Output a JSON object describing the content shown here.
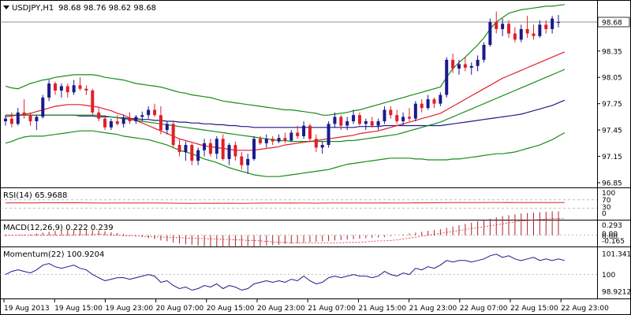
{
  "main": {
    "symbol_label": "USDJPY,H1",
    "ohlc_label": "98.68 98.76 98.62 98.68",
    "price_ticks": [
      "98.68",
      "98.35",
      "98.05",
      "97.75",
      "97.45",
      "97.15",
      "96.85"
    ],
    "current_price": "98.68"
  },
  "rsi": {
    "label": "RSI(14) 65.9688",
    "levels": [
      "100",
      "70",
      "30",
      "0"
    ]
  },
  "macd": {
    "label": "MACD(12,26,9) 0.222 0.239",
    "levels": [
      "0.293",
      "0.00",
      "0.00",
      "-0.165"
    ]
  },
  "momentum": {
    "label": "Momentum(22) 100.9204",
    "levels": [
      "101.3413",
      "100",
      "98.9212"
    ]
  },
  "time_labels": [
    "19 Aug 2013",
    "19 Aug 15:00",
    "19 Aug 23:00",
    "20 Aug 07:00",
    "20 Aug 15:00",
    "20 Aug 23:00",
    "21 Aug 07:00",
    "21 Aug 15:00",
    "21 Aug 23:00",
    "22 Aug 07:00",
    "22 Aug 15:00",
    "22 Aug 23:00"
  ],
  "colors": {
    "bull": "#1a1a8c",
    "bear": "#e0202a",
    "bollinger": "#1a8c1a",
    "ma_fast": "#e0202a",
    "ma_mid": "#1a8c1a",
    "ma_slow": "#1a1a8c",
    "macd_hist": "#b0202a",
    "oscillator": "#e0202a",
    "momentum": "#1a1a8c"
  },
  "chart_data": {
    "type": "candlestick",
    "title": "USDJPY,H1",
    "ylim": [
      96.8,
      98.8
    ],
    "candles": [
      {
        "o": 97.55,
        "h": 97.62,
        "l": 97.5,
        "c": 97.58
      },
      {
        "o": 97.58,
        "h": 97.65,
        "l": 97.48,
        "c": 97.52
      },
      {
        "o": 97.52,
        "h": 97.7,
        "l": 97.5,
        "c": 97.65
      },
      {
        "o": 97.65,
        "h": 97.8,
        "l": 97.58,
        "c": 97.62
      },
      {
        "o": 97.62,
        "h": 97.65,
        "l": 97.5,
        "c": 97.55
      },
      {
        "o": 97.55,
        "h": 97.62,
        "l": 97.45,
        "c": 97.6
      },
      {
        "o": 97.6,
        "h": 97.85,
        "l": 97.58,
        "c": 97.82
      },
      {
        "o": 97.82,
        "h": 98.02,
        "l": 97.78,
        "c": 97.98
      },
      {
        "o": 97.98,
        "h": 98.0,
        "l": 97.85,
        "c": 97.9
      },
      {
        "o": 97.9,
        "h": 97.98,
        "l": 97.82,
        "c": 97.95
      },
      {
        "o": 97.95,
        "h": 97.98,
        "l": 97.82,
        "c": 97.88
      },
      {
        "o": 97.88,
        "h": 98.02,
        "l": 97.85,
        "c": 97.96
      },
      {
        "o": 97.96,
        "h": 98.05,
        "l": 97.9,
        "c": 97.92
      },
      {
        "o": 97.92,
        "h": 97.96,
        "l": 97.85,
        "c": 97.9
      },
      {
        "o": 97.9,
        "h": 97.92,
        "l": 97.62,
        "c": 97.65
      },
      {
        "o": 97.65,
        "h": 97.7,
        "l": 97.55,
        "c": 97.58
      },
      {
        "o": 97.58,
        "h": 97.62,
        "l": 97.45,
        "c": 97.48
      },
      {
        "o": 97.48,
        "h": 97.58,
        "l": 97.45,
        "c": 97.55
      },
      {
        "o": 97.55,
        "h": 97.62,
        "l": 97.5,
        "c": 97.52
      },
      {
        "o": 97.52,
        "h": 97.62,
        "l": 97.48,
        "c": 97.58
      },
      {
        "o": 97.58,
        "h": 97.65,
        "l": 97.52,
        "c": 97.55
      },
      {
        "o": 97.55,
        "h": 97.62,
        "l": 97.52,
        "c": 97.6
      },
      {
        "o": 97.6,
        "h": 97.66,
        "l": 97.55,
        "c": 97.62
      },
      {
        "o": 97.62,
        "h": 97.72,
        "l": 97.58,
        "c": 97.68
      },
      {
        "o": 97.68,
        "h": 97.75,
        "l": 97.6,
        "c": 97.62
      },
      {
        "o": 97.62,
        "h": 97.72,
        "l": 97.4,
        "c": 97.45
      },
      {
        "o": 97.45,
        "h": 97.55,
        "l": 97.4,
        "c": 97.52
      },
      {
        "o": 97.52,
        "h": 97.55,
        "l": 97.25,
        "c": 97.28
      },
      {
        "o": 97.28,
        "h": 97.35,
        "l": 97.15,
        "c": 97.2
      },
      {
        "o": 97.2,
        "h": 97.32,
        "l": 97.1,
        "c": 97.28
      },
      {
        "o": 97.28,
        "h": 97.3,
        "l": 97.05,
        "c": 97.1
      },
      {
        "o": 97.1,
        "h": 97.25,
        "l": 97.05,
        "c": 97.22
      },
      {
        "o": 97.22,
        "h": 97.35,
        "l": 97.15,
        "c": 97.3
      },
      {
        "o": 97.3,
        "h": 97.35,
        "l": 97.15,
        "c": 97.18
      },
      {
        "o": 97.18,
        "h": 97.38,
        "l": 97.12,
        "c": 97.35
      },
      {
        "o": 97.35,
        "h": 97.4,
        "l": 97.1,
        "c": 97.12
      },
      {
        "o": 97.12,
        "h": 97.3,
        "l": 97.05,
        "c": 97.28
      },
      {
        "o": 97.28,
        "h": 97.32,
        "l": 97.1,
        "c": 97.15
      },
      {
        "o": 97.15,
        "h": 97.2,
        "l": 97.0,
        "c": 97.05
      },
      {
        "o": 97.05,
        "h": 97.18,
        "l": 96.95,
        "c": 97.12
      },
      {
        "o": 97.12,
        "h": 97.38,
        "l": 97.1,
        "c": 97.35
      },
      {
        "o": 97.35,
        "h": 97.38,
        "l": 97.28,
        "c": 97.3
      },
      {
        "o": 97.3,
        "h": 97.4,
        "l": 97.25,
        "c": 97.35
      },
      {
        "o": 97.35,
        "h": 97.38,
        "l": 97.28,
        "c": 97.32
      },
      {
        "o": 97.32,
        "h": 97.4,
        "l": 97.3,
        "c": 97.36
      },
      {
        "o": 97.36,
        "h": 97.42,
        "l": 97.3,
        "c": 97.33
      },
      {
        "o": 97.33,
        "h": 97.45,
        "l": 97.32,
        "c": 97.42
      },
      {
        "o": 97.42,
        "h": 97.5,
        "l": 97.35,
        "c": 97.38
      },
      {
        "o": 97.38,
        "h": 97.55,
        "l": 97.35,
        "c": 97.5
      },
      {
        "o": 97.5,
        "h": 97.52,
        "l": 97.32,
        "c": 97.35
      },
      {
        "o": 97.35,
        "h": 97.4,
        "l": 97.2,
        "c": 97.25
      },
      {
        "o": 97.25,
        "h": 97.32,
        "l": 97.18,
        "c": 97.28
      },
      {
        "o": 97.28,
        "h": 97.55,
        "l": 97.25,
        "c": 97.52
      },
      {
        "o": 97.52,
        "h": 97.65,
        "l": 97.48,
        "c": 97.6
      },
      {
        "o": 97.6,
        "h": 97.62,
        "l": 97.45,
        "c": 97.5
      },
      {
        "o": 97.5,
        "h": 97.6,
        "l": 97.45,
        "c": 97.55
      },
      {
        "o": 97.55,
        "h": 97.68,
        "l": 97.52,
        "c": 97.62
      },
      {
        "o": 97.62,
        "h": 97.65,
        "l": 97.5,
        "c": 97.52
      },
      {
        "o": 97.52,
        "h": 97.58,
        "l": 97.45,
        "c": 97.55
      },
      {
        "o": 97.55,
        "h": 97.6,
        "l": 97.48,
        "c": 97.5
      },
      {
        "o": 97.5,
        "h": 97.58,
        "l": 97.45,
        "c": 97.55
      },
      {
        "o": 97.55,
        "h": 97.72,
        "l": 97.52,
        "c": 97.68
      },
      {
        "o": 97.68,
        "h": 97.72,
        "l": 97.58,
        "c": 97.62
      },
      {
        "o": 97.62,
        "h": 97.68,
        "l": 97.52,
        "c": 97.55
      },
      {
        "o": 97.55,
        "h": 97.65,
        "l": 97.5,
        "c": 97.6
      },
      {
        "o": 97.6,
        "h": 97.7,
        "l": 97.55,
        "c": 97.58
      },
      {
        "o": 97.58,
        "h": 97.78,
        "l": 97.55,
        "c": 97.75
      },
      {
        "o": 97.75,
        "h": 97.8,
        "l": 97.65,
        "c": 97.7
      },
      {
        "o": 97.7,
        "h": 97.85,
        "l": 97.68,
        "c": 97.8
      },
      {
        "o": 97.8,
        "h": 97.82,
        "l": 97.7,
        "c": 97.75
      },
      {
        "o": 97.75,
        "h": 97.88,
        "l": 97.72,
        "c": 97.85
      },
      {
        "o": 97.85,
        "h": 98.28,
        "l": 97.82,
        "c": 98.25
      },
      {
        "o": 98.25,
        "h": 98.32,
        "l": 98.1,
        "c": 98.15
      },
      {
        "o": 98.15,
        "h": 98.25,
        "l": 98.08,
        "c": 98.2
      },
      {
        "o": 98.2,
        "h": 98.28,
        "l": 98.12,
        "c": 98.16
      },
      {
        "o": 98.16,
        "h": 98.22,
        "l": 98.08,
        "c": 98.18
      },
      {
        "o": 98.18,
        "h": 98.3,
        "l": 98.12,
        "c": 98.25
      },
      {
        "o": 98.25,
        "h": 98.45,
        "l": 98.22,
        "c": 98.42
      },
      {
        "o": 98.42,
        "h": 98.72,
        "l": 98.4,
        "c": 98.68
      },
      {
        "o": 98.68,
        "h": 98.8,
        "l": 98.55,
        "c": 98.6
      },
      {
        "o": 98.6,
        "h": 98.72,
        "l": 98.52,
        "c": 98.66
      },
      {
        "o": 98.66,
        "h": 98.7,
        "l": 98.5,
        "c": 98.55
      },
      {
        "o": 98.55,
        "h": 98.62,
        "l": 98.45,
        "c": 98.48
      },
      {
        "o": 98.48,
        "h": 98.65,
        "l": 98.45,
        "c": 98.6
      },
      {
        "o": 98.6,
        "h": 98.75,
        "l": 98.5,
        "c": 98.55
      },
      {
        "o": 98.55,
        "h": 98.65,
        "l": 98.48,
        "c": 98.52
      },
      {
        "o": 98.52,
        "h": 98.7,
        "l": 98.5,
        "c": 98.65
      },
      {
        "o": 98.65,
        "h": 98.7,
        "l": 98.55,
        "c": 98.6
      },
      {
        "o": 98.6,
        "h": 98.75,
        "l": 98.55,
        "c": 98.72
      },
      {
        "o": 98.68,
        "h": 98.76,
        "l": 98.62,
        "c": 98.68
      }
    ],
    "overlays": {
      "bb_upper": [
        97.95,
        97.93,
        97.92,
        97.95,
        97.98,
        98.0,
        98.02,
        98.03,
        98.05,
        98.06,
        98.07,
        98.08,
        98.08,
        98.08,
        98.08,
        98.07,
        98.05,
        98.04,
        98.03,
        98.02,
        98.0,
        97.98,
        97.97,
        97.96,
        97.95,
        97.94,
        97.92,
        97.9,
        97.88,
        97.87,
        97.85,
        97.84,
        97.83,
        97.82,
        97.8,
        97.78,
        97.77,
        97.76,
        97.75,
        97.74,
        97.73,
        97.72,
        97.71,
        97.7,
        97.69,
        97.68,
        97.68,
        97.67,
        97.66,
        97.65,
        97.64,
        97.62,
        97.62,
        97.63,
        97.64,
        97.65,
        97.67,
        97.68,
        97.7,
        97.72,
        97.74,
        97.76,
        97.78,
        97.8,
        97.82,
        97.84,
        97.86,
        97.88,
        97.9,
        97.92,
        97.94,
        98.05,
        98.15,
        98.22,
        98.28,
        98.35,
        98.42,
        98.5,
        98.6,
        98.68,
        98.73,
        98.78,
        98.8,
        98.82,
        98.83,
        98.84,
        98.85,
        98.86,
        98.86,
        98.87,
        98.88
      ],
      "bb_lower": [
        97.3,
        97.32,
        97.35,
        97.37,
        97.38,
        97.38,
        97.38,
        97.39,
        97.4,
        97.41,
        97.42,
        97.43,
        97.44,
        97.44,
        97.44,
        97.43,
        97.42,
        97.41,
        97.4,
        97.38,
        97.37,
        97.36,
        97.35,
        97.34,
        97.32,
        97.3,
        97.28,
        97.25,
        97.22,
        97.2,
        97.18,
        97.15,
        97.12,
        97.1,
        97.08,
        97.05,
        97.02,
        97.0,
        96.98,
        96.96,
        96.94,
        96.93,
        96.92,
        96.92,
        96.92,
        96.93,
        96.94,
        96.95,
        96.96,
        96.97,
        96.98,
        96.99,
        97.0,
        97.02,
        97.04,
        97.06,
        97.07,
        97.08,
        97.09,
        97.1,
        97.11,
        97.12,
        97.13,
        97.13,
        97.13,
        97.13,
        97.12,
        97.12,
        97.11,
        97.11,
        97.11,
        97.11,
        97.12,
        97.12,
        97.13,
        97.14,
        97.15,
        97.16,
        97.17,
        97.18,
        97.18,
        97.19,
        97.2,
        97.22,
        97.24,
        97.26,
        97.28,
        97.31,
        97.34,
        97.38,
        97.42
      ],
      "ma_fast": [
        97.6,
        97.61,
        97.62,
        97.63,
        97.64,
        97.66,
        97.68,
        97.7,
        97.72,
        97.73,
        97.74,
        97.74,
        97.74,
        97.73,
        97.72,
        97.71,
        97.69,
        97.67,
        97.64,
        97.62,
        97.59,
        97.56,
        97.53,
        97.5,
        97.47,
        97.44,
        97.41,
        97.38,
        97.35,
        97.33,
        97.31,
        97.29,
        97.27,
        97.26,
        97.25,
        97.24,
        97.23,
        97.22,
        97.22,
        97.22,
        97.22,
        97.23,
        97.24,
        97.25,
        97.26,
        97.28,
        97.29,
        97.3,
        97.31,
        97.32,
        97.33,
        97.34,
        97.35,
        97.36,
        97.37,
        97.38,
        97.39,
        97.41,
        97.42,
        97.43,
        97.44,
        97.46,
        97.48,
        97.5,
        97.52,
        97.54,
        97.56,
        97.58,
        97.6,
        97.62,
        97.64,
        97.68,
        97.72,
        97.76,
        97.8,
        97.84,
        97.88,
        97.92,
        97.96,
        98.0,
        98.04,
        98.07,
        98.1,
        98.13,
        98.16,
        98.19,
        98.22,
        98.25,
        98.28,
        98.31,
        98.34
      ],
      "ma_mid": [
        97.62,
        97.62,
        97.62,
        97.62,
        97.62,
        97.62,
        97.62,
        97.62,
        97.62,
        97.62,
        97.62,
        97.62,
        97.62,
        97.62,
        97.62,
        97.62,
        97.61,
        97.6,
        97.59,
        97.58,
        97.57,
        97.56,
        97.55,
        97.54,
        97.53,
        97.52,
        97.51,
        97.5,
        97.49,
        97.48,
        97.47,
        97.46,
        97.45,
        97.44,
        97.43,
        97.42,
        97.41,
        97.4,
        97.39,
        97.38,
        97.37,
        97.36,
        97.35,
        97.34,
        97.33,
        97.33,
        97.32,
        97.32,
        97.32,
        97.32,
        97.32,
        97.32,
        97.32,
        97.32,
        97.32,
        97.33,
        97.33,
        97.34,
        97.35,
        97.36,
        97.37,
        97.38,
        97.39,
        97.4,
        97.42,
        97.44,
        97.46,
        97.48,
        97.5,
        97.52,
        97.54,
        97.57,
        97.6,
        97.63,
        97.66,
        97.69,
        97.72,
        97.75,
        97.78,
        97.81,
        97.84,
        97.87,
        97.9,
        97.93,
        97.96,
        97.99,
        98.02,
        98.05,
        98.08,
        98.11,
        98.14
      ],
      "ma_slow": [
        97.62,
        97.62,
        97.62,
        97.62,
        97.62,
        97.62,
        97.62,
        97.62,
        97.62,
        97.62,
        97.62,
        97.62,
        97.61,
        97.61,
        97.61,
        97.6,
        97.6,
        97.6,
        97.59,
        97.59,
        97.58,
        97.58,
        97.57,
        97.57,
        97.56,
        97.56,
        97.55,
        97.55,
        97.54,
        97.54,
        97.53,
        97.53,
        97.52,
        97.52,
        97.51,
        97.51,
        97.5,
        97.5,
        97.49,
        97.49,
        97.48,
        97.48,
        97.48,
        97.48,
        97.48,
        97.48,
        97.48,
        97.48,
        97.48,
        97.48,
        97.48,
        97.48,
        97.48,
        97.48,
        97.48,
        97.48,
        97.48,
        97.49,
        97.49,
        97.49,
        97.49,
        97.5,
        97.5,
        97.5,
        97.5,
        97.5,
        97.5,
        97.5,
        97.5,
        97.5,
        97.5,
        97.51,
        97.52,
        97.53,
        97.54,
        97.55,
        97.56,
        97.57,
        97.58,
        97.59,
        97.6,
        97.61,
        97.62,
        97.63,
        97.65,
        97.67,
        97.69,
        97.71,
        97.73,
        97.76,
        97.79
      ]
    },
    "rsi": {
      "label": "RSI(14)",
      "value": 65.9688,
      "ylim": [
        0,
        100
      ],
      "levels": [
        30,
        70
      ]
    },
    "macd": {
      "label": "MACD(12,26,9)",
      "main": 0.222,
      "signal": 0.239,
      "ylim": [
        -0.165,
        0.293
      ]
    },
    "momentum": {
      "label": "Momentum(22)",
      "value": 100.9204,
      "ylim": [
        98.9212,
        101.3413
      ],
      "level": 100,
      "values": [
        100.0,
        100.2,
        100.3,
        100.2,
        100.1,
        100.3,
        100.6,
        100.7,
        100.5,
        100.4,
        100.5,
        100.6,
        100.4,
        100.3,
        100.0,
        99.8,
        99.6,
        99.7,
        99.8,
        99.8,
        99.7,
        99.8,
        99.9,
        100.0,
        99.9,
        99.5,
        99.6,
        99.3,
        99.1,
        99.2,
        99.0,
        99.1,
        99.3,
        99.2,
        99.4,
        99.1,
        99.3,
        99.2,
        99.0,
        99.1,
        99.4,
        99.5,
        99.6,
        99.5,
        99.6,
        99.5,
        99.7,
        99.6,
        99.9,
        99.6,
        99.4,
        99.5,
        99.8,
        99.9,
        99.8,
        99.9,
        100.0,
        99.9,
        99.9,
        99.8,
        99.9,
        100.2,
        100.0,
        99.9,
        100.1,
        100.0,
        100.4,
        100.3,
        100.5,
        100.4,
        100.6,
        100.9,
        100.8,
        100.9,
        100.9,
        100.8,
        100.9,
        101.0,
        101.2,
        101.3,
        101.1,
        101.2,
        101.0,
        100.9,
        101.0,
        101.1,
        100.9,
        101.0,
        100.9,
        101.0,
        100.9
      ]
    },
    "x_labels": [
      "19 Aug 2013",
      "19 Aug 15:00",
      "19 Aug 23:00",
      "20 Aug 07:00",
      "20 Aug 15:00",
      "20 Aug 23:00",
      "21 Aug 07:00",
      "21 Aug 15:00",
      "21 Aug 23:00",
      "22 Aug 07:00",
      "22 Aug 15:00",
      "22 Aug 23:00"
    ],
    "y_ticks": [
      98.68,
      98.35,
      98.05,
      97.75,
      97.45,
      97.15,
      96.85
    ]
  }
}
